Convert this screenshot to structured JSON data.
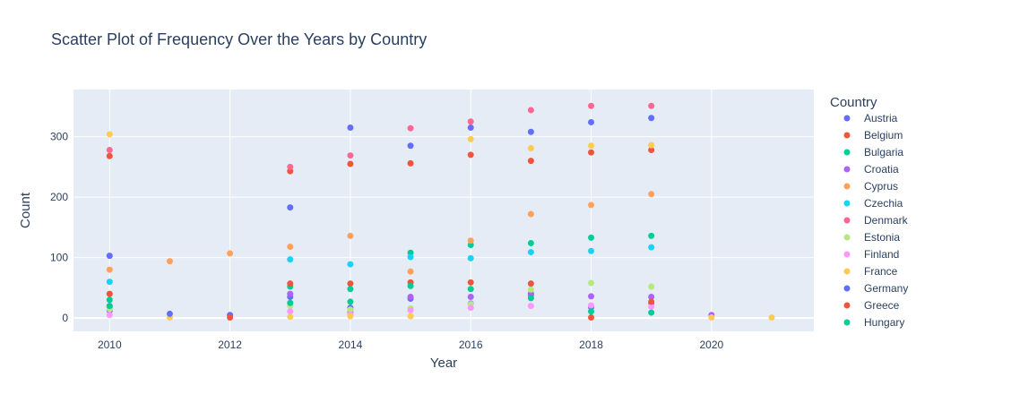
{
  "chart_data": {
    "type": "scatter",
    "title": "Scatter Plot of Frequency Over the Years by Country",
    "xlabel": "Year",
    "ylabel": "Count",
    "xlim": [
      2009.4,
      2021.7
    ],
    "ylim": [
      -22,
      378
    ],
    "x_ticks": [
      2010,
      2012,
      2014,
      2016,
      2018,
      2020
    ],
    "y_ticks": [
      0,
      100,
      200,
      300
    ],
    "grid": true,
    "legend_title": "Country",
    "legend_position": "right",
    "series": [
      {
        "name": "Austria",
        "color": "#636efa",
        "x": [
          2010,
          2013,
          2014,
          2015,
          2016,
          2017,
          2018,
          2019
        ],
        "y": [
          18,
          35,
          17,
          32,
          24,
          40,
          18,
          25
        ]
      },
      {
        "name": "Belgium",
        "color": "#EF553B",
        "x": [
          2010,
          2013,
          2014,
          2015,
          2016,
          2017,
          2018,
          2019
        ],
        "y": [
          268,
          243,
          255,
          256,
          270,
          260,
          274,
          278
        ]
      },
      {
        "name": "Bulgaria",
        "color": "#00cc96",
        "x": [
          2010,
          2013,
          2014,
          2015,
          2016,
          2017,
          2018,
          2019
        ],
        "y": [
          30,
          52,
          27,
          108,
          121,
          124,
          133,
          136
        ]
      },
      {
        "name": "Croatia",
        "color": "#ab63fa",
        "x": [
          2010,
          2013,
          2014,
          2015,
          2016,
          2017,
          2018,
          2019,
          2020
        ],
        "y": [
          12,
          40,
          10,
          35,
          35,
          38,
          36,
          35,
          5
        ]
      },
      {
        "name": "Cyprus",
        "color": "#FFA15A",
        "x": [
          2010,
          2011,
          2012,
          2013,
          2014,
          2015,
          2016,
          2017,
          2018,
          2019
        ],
        "y": [
          80,
          94,
          107,
          118,
          136,
          77,
          128,
          172,
          187,
          205
        ]
      },
      {
        "name": "Czechia",
        "color": "#19d3f3",
        "x": [
          2010,
          2013,
          2014,
          2015,
          2016,
          2017,
          2018,
          2019
        ],
        "y": [
          60,
          97,
          89,
          101,
          99,
          109,
          111,
          117
        ]
      },
      {
        "name": "Denmark",
        "color": "#FF6692",
        "x": [
          2010,
          2013,
          2014,
          2015,
          2016,
          2017,
          2018,
          2019
        ],
        "y": [
          278,
          250,
          269,
          314,
          325,
          344,
          351,
          351
        ]
      },
      {
        "name": "Estonia",
        "color": "#B6E880",
        "x": [
          2010,
          2013,
          2014,
          2015,
          2016,
          2017,
          2018,
          2019
        ],
        "y": [
          15,
          20,
          14,
          16,
          23,
          47,
          58,
          52
        ]
      },
      {
        "name": "Finland",
        "color": "#FF97FF",
        "x": [
          2010,
          2013,
          2014,
          2015,
          2016,
          2017,
          2018,
          2019
        ],
        "y": [
          5,
          11,
          6,
          13,
          17,
          20,
          21,
          19
        ]
      },
      {
        "name": "France",
        "color": "#FECB52",
        "x": [
          2010,
          2011,
          2013,
          2014,
          2015,
          2016,
          2017,
          2018,
          2019,
          2020,
          2021
        ],
        "y": [
          304,
          1,
          2,
          3,
          3,
          296,
          281,
          285,
          286,
          1,
          1
        ]
      },
      {
        "name": "Germany",
        "color": "#636efa",
        "x": [
          2010,
          2011,
          2012,
          2013,
          2014,
          2015,
          2016,
          2017,
          2018,
          2019
        ],
        "y": [
          103,
          7,
          5,
          183,
          315,
          285,
          315,
          308,
          324,
          331
        ]
      },
      {
        "name": "Greece",
        "color": "#EF553B",
        "x": [
          2010,
          2012,
          2013,
          2014,
          2015,
          2016,
          2017,
          2018,
          2019
        ],
        "y": [
          40,
          1,
          57,
          57,
          59,
          59,
          57,
          1,
          27
        ]
      },
      {
        "name": "Hungary",
        "color": "#00cc96",
        "x": [
          2010,
          2013,
          2014,
          2015,
          2016,
          2017,
          2018,
          2019
        ],
        "y": [
          20,
          25,
          48,
          53,
          48,
          33,
          11,
          9
        ]
      }
    ]
  }
}
